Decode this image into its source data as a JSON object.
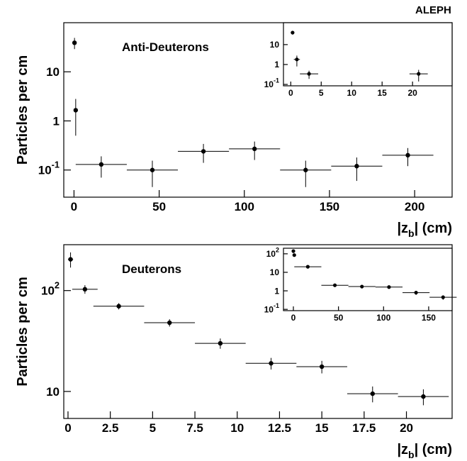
{
  "chart_data": [
    {
      "type": "scatter",
      "title": "Anti-Deuterons",
      "annotation": "ALEPH",
      "y_label": "Particles per cm",
      "x_label": {
        "text": "|z",
        "sub": "b",
        "rest": "| (cm)"
      },
      "log_y": true,
      "color": "#000000",
      "x": [
        0.3,
        1,
        16,
        46,
        76,
        106,
        136,
        166,
        196
      ],
      "values": [
        39,
        1.65,
        0.13,
        0.1,
        0.24,
        0.27,
        0.1,
        0.12,
        0.2
      ],
      "yerr": [
        10,
        1.15,
        0.06,
        0.055,
        0.1,
        0.11,
        0.055,
        0.06,
        0.08
      ],
      "xerr": [
        0.3,
        0.5,
        15,
        15,
        15,
        15,
        15,
        15,
        15
      ],
      "xlim": [
        -6,
        222
      ],
      "xticks": [
        0,
        50,
        100,
        150,
        200
      ],
      "ylim": [
        0.028,
        100
      ],
      "yticks": [
        {
          "value": 0.1,
          "label": "10",
          "exponent": "-1"
        },
        1,
        10
      ]
    },
    {
      "type": "scatter",
      "log_y": true,
      "color": "#000000",
      "x": [
        0.3,
        1,
        3,
        21
      ],
      "values": [
        40,
        1.8,
        0.34,
        0.34
      ],
      "yerr": [
        8,
        1,
        0.15,
        0.2
      ],
      "xerr": [
        0.3,
        0.5,
        1.5,
        1.5
      ],
      "xlim": [
        -1.2,
        26.5
      ],
      "xticks": [
        0,
        5,
        10,
        15,
        20
      ],
      "ylim": [
        0.085,
        126
      ],
      "yticks": [
        {
          "value": 0.1,
          "label": "10",
          "exponent": "-1"
        },
        1,
        10
      ]
    },
    {
      "type": "scatter",
      "title": "Deuterons",
      "y_label": "Particles per cm",
      "x_label": {
        "text": "|z",
        "sub": "b",
        "rest": "| (cm)"
      },
      "log_y": true,
      "color": "#000000",
      "x": [
        0.15,
        1,
        3,
        6,
        9,
        12,
        15,
        18,
        21
      ],
      "values": [
        204,
        103,
        70,
        48,
        30,
        19,
        17.6,
        9.5,
        8.9
      ],
      "yerr": [
        35,
        10,
        5,
        4,
        3.5,
        2.5,
        2.5,
        1.7,
        1.6
      ],
      "xerr": [
        0.15,
        0.75,
        1.5,
        1.5,
        1.5,
        1.5,
        1.5,
        1.5,
        1.5
      ],
      "xlim": [
        -0.25,
        22.7
      ],
      "xticks": [
        0,
        2.5,
        5,
        7.5,
        10,
        12.5,
        15,
        17.5,
        20
      ],
      "ylim": [
        5.4,
        285
      ],
      "yticks": [
        10,
        {
          "value": 100,
          "label": "10",
          "exponent": "2"
        }
      ]
    },
    {
      "type": "scatter",
      "log_y": true,
      "color": "#000000",
      "x": [
        0,
        1,
        16,
        46,
        76,
        106,
        136,
        166
      ],
      "values": [
        140,
        85,
        20,
        2,
        1.7,
        1.6,
        0.8,
        0.45
      ],
      "yerr": [
        30,
        15,
        3,
        0.4,
        0.35,
        0.3,
        0.2,
        0.12
      ],
      "xerr": [
        1,
        1,
        15,
        15,
        15,
        15,
        15,
        15
      ],
      "xlim": [
        -11,
        176
      ],
      "xticks": [
        0,
        50,
        100,
        150
      ],
      "ylim": [
        0.085,
        200
      ],
      "yticks": [
        {
          "value": 0.1,
          "label": "10",
          "exponent": "-1"
        },
        1,
        10,
        {
          "value": 100,
          "label": "10",
          "exponent": "2"
        }
      ]
    }
  ]
}
